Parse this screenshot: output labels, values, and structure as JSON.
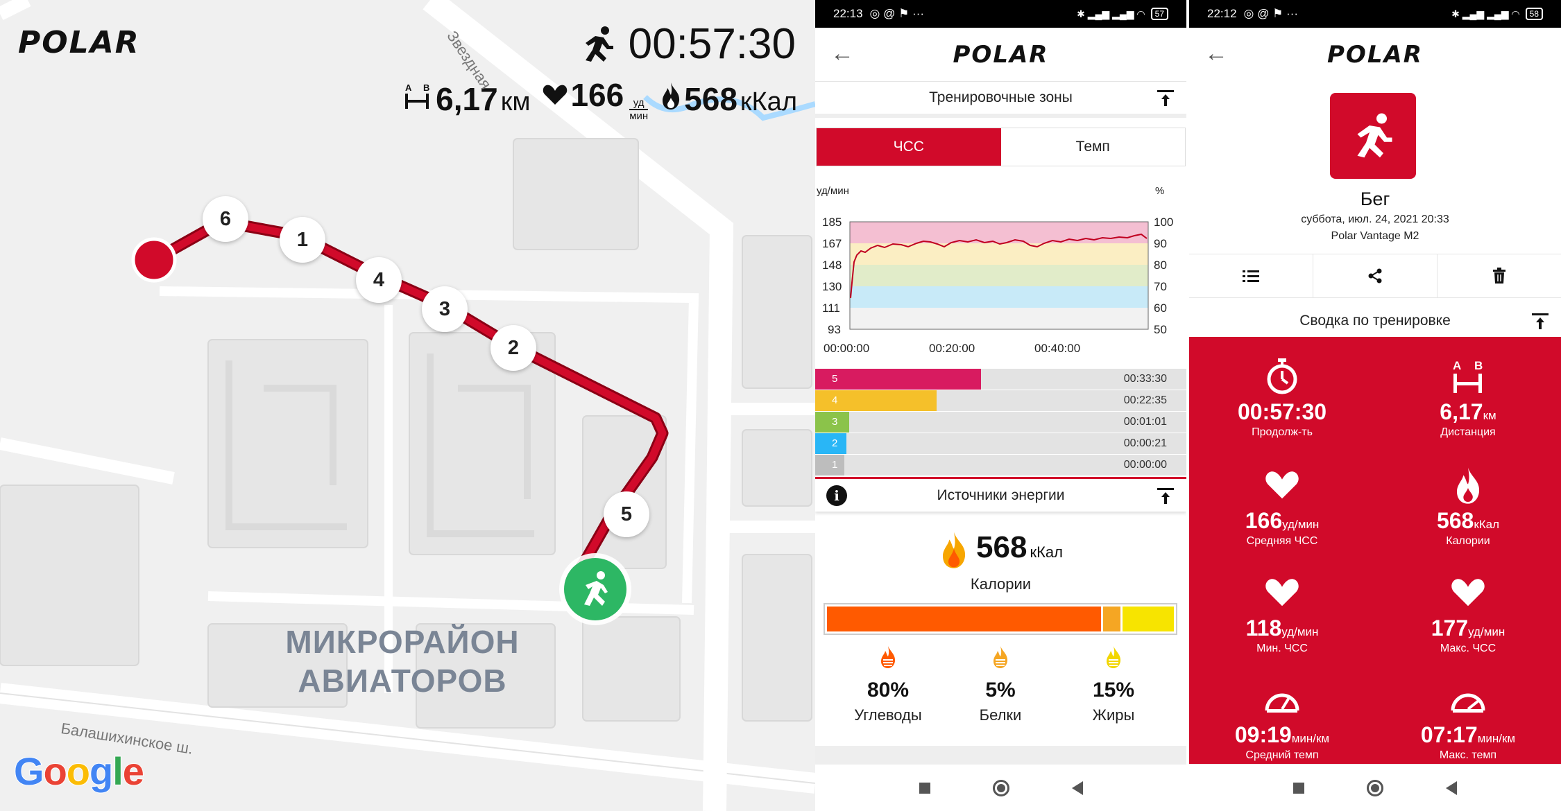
{
  "map": {
    "brand": "POLAR",
    "duration": "00:57:30",
    "distance": "6,17",
    "distance_unit": "км",
    "hr": "166",
    "hr_unit_top": "уд",
    "hr_unit_bottom": "мин",
    "calories": "568",
    "calories_unit": "кКал",
    "laps": [
      "6",
      "1",
      "4",
      "3",
      "2",
      "5"
    ],
    "district": "МИКРОРАЙОН АВИАТОРОВ",
    "street_1": "Балашихинское ш.",
    "street_2": "Звездная",
    "google": "Google",
    "route_color": "#d10a2a",
    "start_color": "#2db764"
  },
  "phone1": {
    "status": {
      "time": "22:13",
      "battery": "57"
    },
    "brand": "POLAR",
    "zones_title": "Тренировочные зоны",
    "tab_hr": "ЧСС",
    "tab_pace": "Темп",
    "y_left_unit": "уд/мин",
    "y_right_unit": "%",
    "y_left_ticks": [
      "185",
      "167",
      "148",
      "130",
      "111",
      "93"
    ],
    "y_right_ticks": [
      "100",
      "90",
      "80",
      "70",
      "60",
      "50"
    ],
    "x_ticks": [
      "00:00:00",
      "00:20:00",
      "00:40:00"
    ],
    "zones": [
      {
        "zone": "5",
        "time": "00:33:30",
        "fraction": 0.58,
        "color": "#d81b60"
      },
      {
        "zone": "4",
        "time": "00:22:35",
        "fraction": 0.39,
        "color": "#f5c02a"
      },
      {
        "zone": "3",
        "time": "00:01:01",
        "fraction": 0.02,
        "color": "#8bc34a"
      },
      {
        "zone": "2",
        "time": "00:00:21",
        "fraction": 0.01,
        "color": "#29b6f6"
      },
      {
        "zone": "1",
        "time": "00:00:00",
        "fraction": 0.0,
        "color": "#bdbdbd"
      }
    ],
    "energy_title": "Источники энергии",
    "energy_value": "568",
    "energy_unit": "кКал",
    "energy_label": "Калории",
    "sources": [
      {
        "pct": "80%",
        "label": "Углеводы",
        "share": 80,
        "color": "#ff5a00"
      },
      {
        "pct": "5%",
        "label": "Белки",
        "share": 5,
        "color": "#f5a623"
      },
      {
        "pct": "15%",
        "label": "Жиры",
        "share": 15,
        "color": "#f7e400"
      }
    ]
  },
  "phone2": {
    "status": {
      "time": "22:12",
      "battery": "58"
    },
    "brand": "POLAR",
    "sport": "Бег",
    "date": "суббота, июл. 24, 2021 20:33",
    "device": "Polar Vantage M2",
    "summary_title": "Сводка по тренировке",
    "cells": [
      {
        "icon": "stopwatch-icon",
        "value": "00:57:30",
        "unit": "",
        "label": "Продолж-ть"
      },
      {
        "icon": "distance-icon",
        "value": "6,17",
        "unit": "км",
        "label": "Дистанция"
      },
      {
        "icon": "heart-icon",
        "value": "166",
        "unit": "уд/мин",
        "label": "Средняя ЧСС"
      },
      {
        "icon": "flame-icon",
        "value": "568",
        "unit": "кКал",
        "label": "Калории"
      },
      {
        "icon": "heart-icon",
        "value": "118",
        "unit": "уд/мин",
        "label": "Мин. ЧСС"
      },
      {
        "icon": "heart-icon",
        "value": "177",
        "unit": "уд/мин",
        "label": "Макс. ЧСС"
      },
      {
        "icon": "speedometer-icon",
        "value": "09:19",
        "unit": "мин/км",
        "label": "Средний темп"
      },
      {
        "icon": "speedometer-icon",
        "value": "07:17",
        "unit": "мин/км",
        "label": "Макс. темп"
      }
    ]
  }
}
